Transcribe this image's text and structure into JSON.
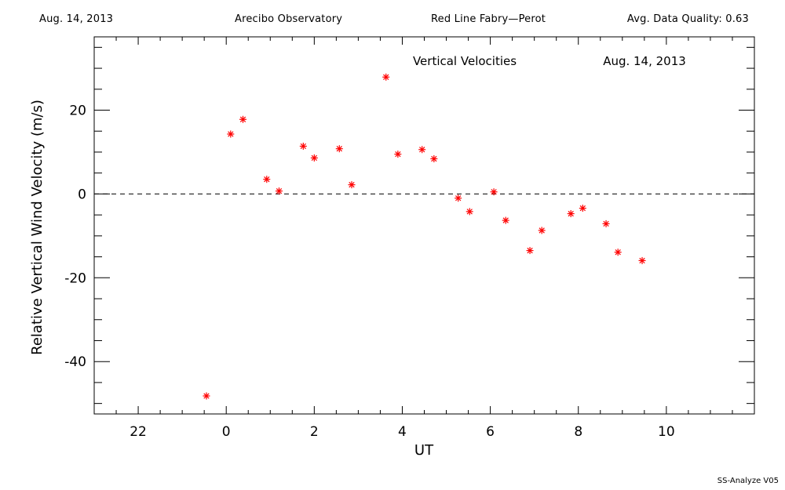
{
  "header": {
    "date": "Aug. 14, 2013",
    "site": "Arecibo Observatory",
    "instrument": "Red Line Fabry—Perot",
    "quality": "Avg. Data Quality: 0.63"
  },
  "footer": {
    "version": "SS-Analyze V05"
  },
  "colors": {
    "points": "#ff0000",
    "axes": "#000000"
  },
  "chart_data": {
    "type": "scatter",
    "title": "Vertical Velocities",
    "subtitle": "Aug. 14, 2013",
    "xlabel": "UT",
    "ylabel": "Relative Vertical Wind Velocity (m/s)",
    "xlim": [
      -3.0,
      12.0
    ],
    "ylim": [
      -52.5,
      37.5
    ],
    "x_ticks": [
      22,
      0,
      2,
      4,
      6,
      8,
      10
    ],
    "x_tick_values": [
      -2,
      0,
      2,
      4,
      6,
      8,
      10
    ],
    "y_ticks": [
      -40,
      -20,
      0,
      20
    ],
    "zero_line": "dashed",
    "grid": false,
    "legend": "none",
    "marker": "asterisk",
    "series": [
      {
        "x": [
          -0.45,
          0.1,
          0.38,
          0.92,
          1.2,
          1.75,
          2.0,
          2.57,
          2.85,
          3.63,
          3.9,
          4.45,
          4.72,
          5.27,
          5.53,
          6.08,
          6.35,
          6.9,
          7.17,
          7.83,
          8.1,
          8.63,
          8.9,
          9.45
        ],
        "y": [
          -48.2,
          14.3,
          17.8,
          3.5,
          0.7,
          11.4,
          8.6,
          10.8,
          2.2,
          27.9,
          9.5,
          10.6,
          8.4,
          -1.0,
          -4.2,
          0.5,
          -6.3,
          -13.5,
          -8.7,
          -4.7,
          -3.4,
          -7.1,
          -13.9,
          -15.9
        ]
      }
    ]
  }
}
